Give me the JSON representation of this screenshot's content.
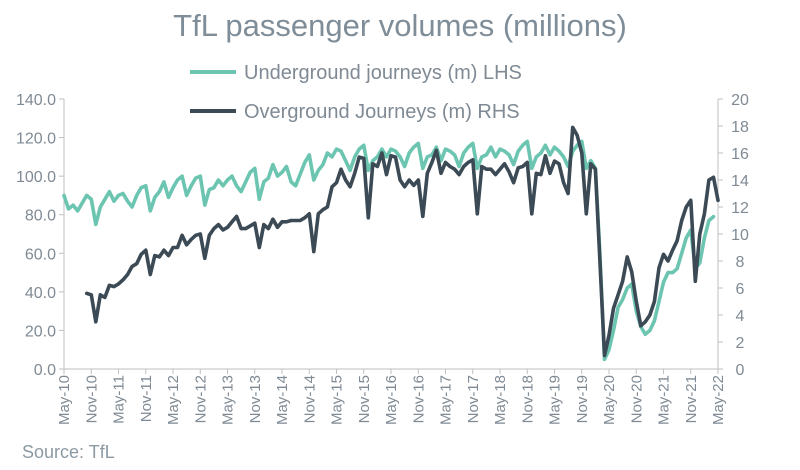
{
  "title": "TfL passenger volumes (millions)",
  "source": "Source: TfL",
  "chart_data": {
    "type": "line",
    "title": "TfL passenger volumes (millions)",
    "left_axis": {
      "min": 0,
      "max": 140,
      "step": 20,
      "ticks": [
        "0.0",
        "20.0",
        "40.0",
        "60.0",
        "80.0",
        "100.0",
        "120.0",
        "140.0"
      ]
    },
    "right_axis": {
      "min": 0,
      "max": 20,
      "step": 2,
      "ticks": [
        "0",
        "2",
        "4",
        "6",
        "8",
        "10",
        "12",
        "14",
        "16",
        "18",
        "20"
      ]
    },
    "x_tick_labels": [
      "May-10",
      "Nov-10",
      "May-11",
      "Nov-11",
      "May-12",
      "Nov-12",
      "May-13",
      "Nov-13",
      "May-14",
      "Nov-14",
      "May-15",
      "Nov-15",
      "May-16",
      "Nov-16",
      "May-17",
      "Nov-17",
      "May-18",
      "Nov-18",
      "May-19",
      "Nov-19",
      "May-20",
      "Nov-20",
      "May-21",
      "Nov-21",
      "May-22"
    ],
    "grid": false,
    "legend_position": "top-center",
    "series": [
      {
        "name": "Underground journeys (m) LHS",
        "axis": "left",
        "color": "#6cc5b0",
        "points": [
          [
            "May-10",
            90
          ],
          [
            "Jun-10",
            83
          ],
          [
            "Jul-10",
            85
          ],
          [
            "Aug-10",
            82
          ],
          [
            "Sep-10",
            86
          ],
          [
            "Oct-10",
            90
          ],
          [
            "Nov-10",
            88
          ],
          [
            "Dec-10",
            75
          ],
          [
            "Jan-11",
            84
          ],
          [
            "Feb-11",
            88
          ],
          [
            "Mar-11",
            92
          ],
          [
            "Apr-11",
            87
          ],
          [
            "May-11",
            90
          ],
          [
            "Jun-11",
            91
          ],
          [
            "Jul-11",
            87
          ],
          [
            "Aug-11",
            84
          ],
          [
            "Sep-11",
            90
          ],
          [
            "Oct-11",
            94
          ],
          [
            "Nov-11",
            95
          ],
          [
            "Dec-11",
            82
          ],
          [
            "Jan-12",
            89
          ],
          [
            "Feb-12",
            92
          ],
          [
            "Mar-12",
            97
          ],
          [
            "Apr-12",
            89
          ],
          [
            "May-12",
            94
          ],
          [
            "Jun-12",
            98
          ],
          [
            "Jul-12",
            100
          ],
          [
            "Aug-12",
            90
          ],
          [
            "Sep-12",
            95
          ],
          [
            "Oct-12",
            99
          ],
          [
            "Nov-12",
            100
          ],
          [
            "Dec-12",
            85
          ],
          [
            "Jan-13",
            93
          ],
          [
            "Feb-13",
            94
          ],
          [
            "Mar-13",
            98
          ],
          [
            "Apr-13",
            95
          ],
          [
            "May-13",
            98
          ],
          [
            "Jun-13",
            100
          ],
          [
            "Jul-13",
            95
          ],
          [
            "Aug-13",
            92
          ],
          [
            "Sep-13",
            97
          ],
          [
            "Oct-13",
            102
          ],
          [
            "Nov-13",
            104
          ],
          [
            "Dec-13",
            88
          ],
          [
            "Jan-14",
            97
          ],
          [
            "Feb-14",
            99
          ],
          [
            "Mar-14",
            106
          ],
          [
            "Apr-14",
            100
          ],
          [
            "May-14",
            102
          ],
          [
            "Jun-14",
            105
          ],
          [
            "Jul-14",
            97
          ],
          [
            "Aug-14",
            95
          ],
          [
            "Sep-14",
            101
          ],
          [
            "Oct-14",
            107
          ],
          [
            "Nov-14",
            111
          ],
          [
            "Dec-14",
            98
          ],
          [
            "Jan-15",
            103
          ],
          [
            "Feb-15",
            106
          ],
          [
            "Mar-15",
            112
          ],
          [
            "Apr-15",
            110
          ],
          [
            "May-15",
            114
          ],
          [
            "Jun-15",
            113
          ],
          [
            "Jul-15",
            108
          ],
          [
            "Aug-15",
            103
          ],
          [
            "Sep-15",
            110
          ],
          [
            "Oct-15",
            114
          ],
          [
            "Nov-15",
            116
          ],
          [
            "Dec-15",
            103
          ],
          [
            "Jan-16",
            108
          ],
          [
            "Feb-16",
            110
          ],
          [
            "Mar-16",
            114
          ],
          [
            "Apr-16",
            110
          ],
          [
            "May-16",
            114
          ],
          [
            "Jun-16",
            113
          ],
          [
            "Jul-16",
            110
          ],
          [
            "Aug-16",
            105
          ],
          [
            "Sep-16",
            112
          ],
          [
            "Oct-16",
            115
          ],
          [
            "Nov-16",
            117
          ],
          [
            "Dec-16",
            104
          ],
          [
            "Jan-17",
            110
          ],
          [
            "Feb-17",
            111
          ],
          [
            "Mar-17",
            115
          ],
          [
            "Apr-17",
            108
          ],
          [
            "May-17",
            114
          ],
          [
            "Jun-17",
            113
          ],
          [
            "Jul-17",
            111
          ],
          [
            "Aug-17",
            105
          ],
          [
            "Sep-17",
            112
          ],
          [
            "Oct-17",
            115
          ],
          [
            "Nov-17",
            117
          ],
          [
            "Dec-17",
            104
          ],
          [
            "Jan-18",
            110
          ],
          [
            "Feb-18",
            111
          ],
          [
            "Mar-18",
            115
          ],
          [
            "Apr-18",
            110
          ],
          [
            "May-18",
            114
          ],
          [
            "Jun-18",
            113
          ],
          [
            "Jul-18",
            111
          ],
          [
            "Aug-18",
            106
          ],
          [
            "Sep-18",
            113
          ],
          [
            "Oct-18",
            116
          ],
          [
            "Nov-18",
            118
          ],
          [
            "Dec-18",
            104
          ],
          [
            "Jan-19",
            110
          ],
          [
            "Feb-19",
            112
          ],
          [
            "Mar-19",
            116
          ],
          [
            "Apr-19",
            111
          ],
          [
            "May-19",
            115
          ],
          [
            "Jun-19",
            113
          ],
          [
            "Jul-19",
            110
          ],
          [
            "Aug-19",
            105
          ],
          [
            "Sep-19",
            113
          ],
          [
            "Oct-19",
            116
          ],
          [
            "Nov-19",
            118
          ],
          [
            "Dec-19",
            104
          ],
          [
            "Jan-20",
            108
          ],
          [
            "Feb-20",
            104
          ],
          [
            "Mar-20",
            60
          ],
          [
            "Apr-20",
            5
          ],
          [
            "May-20",
            10
          ],
          [
            "Jun-20",
            20
          ],
          [
            "Jul-20",
            32
          ],
          [
            "Aug-20",
            36
          ],
          [
            "Sep-20",
            42
          ],
          [
            "Oct-20",
            44
          ],
          [
            "Nov-20",
            30
          ],
          [
            "Dec-20",
            22
          ],
          [
            "Jan-21",
            18
          ],
          [
            "Feb-21",
            20
          ],
          [
            "Mar-21",
            25
          ],
          [
            "Apr-21",
            35
          ],
          [
            "May-21",
            45
          ],
          [
            "Jun-21",
            50
          ],
          [
            "Jul-21",
            50
          ],
          [
            "Aug-21",
            52
          ],
          [
            "Sep-21",
            60
          ],
          [
            "Oct-21",
            68
          ],
          [
            "Nov-21",
            72
          ],
          [
            "Dec-21",
            52
          ],
          [
            "Jan-22",
            55
          ],
          [
            "Feb-22",
            68
          ],
          [
            "Mar-22",
            77
          ],
          [
            "Apr-22",
            79
          ]
        ]
      },
      {
        "name": "Overground Journeys (m) RHS",
        "axis": "right",
        "color": "#3b4a55",
        "points": [
          [
            "Oct-10",
            5.6
          ],
          [
            "Nov-10",
            5.5
          ],
          [
            "Dec-10",
            3.5
          ],
          [
            "Jan-11",
            5.5
          ],
          [
            "Feb-11",
            5.3
          ],
          [
            "Mar-11",
            6.2
          ],
          [
            "Apr-11",
            6.1
          ],
          [
            "May-11",
            6.3
          ],
          [
            "Jun-11",
            6.6
          ],
          [
            "Jul-11",
            7.0
          ],
          [
            "Aug-11",
            7.6
          ],
          [
            "Sep-11",
            7.8
          ],
          [
            "Oct-11",
            8.5
          ],
          [
            "Nov-11",
            8.8
          ],
          [
            "Dec-11",
            7.0
          ],
          [
            "Jan-12",
            8.4
          ],
          [
            "Feb-12",
            8.3
          ],
          [
            "Mar-12",
            8.8
          ],
          [
            "Apr-12",
            8.4
          ],
          [
            "May-12",
            9.0
          ],
          [
            "Jun-12",
            9.0
          ],
          [
            "Jul-12",
            9.9
          ],
          [
            "Aug-12",
            9.2
          ],
          [
            "Sep-12",
            9.6
          ],
          [
            "Oct-12",
            9.9
          ],
          [
            "Nov-12",
            10.0
          ],
          [
            "Dec-12",
            8.2
          ],
          [
            "Jan-13",
            9.9
          ],
          [
            "Feb-13",
            10.4
          ],
          [
            "Mar-13",
            10.7
          ],
          [
            "Apr-13",
            10.3
          ],
          [
            "May-13",
            10.5
          ],
          [
            "Jun-13",
            10.9
          ],
          [
            "Jul-13",
            11.3
          ],
          [
            "Aug-13",
            10.4
          ],
          [
            "Sep-13",
            10.4
          ],
          [
            "Oct-13",
            10.6
          ],
          [
            "Nov-13",
            10.8
          ],
          [
            "Dec-13",
            9.0
          ],
          [
            "Jan-14",
            10.7
          ],
          [
            "Feb-14",
            10.4
          ],
          [
            "Mar-14",
            11.1
          ],
          [
            "Apr-14",
            10.5
          ],
          [
            "May-14",
            10.9
          ],
          [
            "Jun-14",
            10.9
          ],
          [
            "Jul-14",
            11.0
          ],
          [
            "Aug-14",
            11.0
          ],
          [
            "Sep-14",
            11.0
          ],
          [
            "Oct-14",
            11.2
          ],
          [
            "Nov-14",
            11.5
          ],
          [
            "Dec-14",
            8.7
          ],
          [
            "Jan-15",
            11.5
          ],
          [
            "Feb-15",
            11.8
          ],
          [
            "Mar-15",
            12.0
          ],
          [
            "Apr-15",
            13.5
          ],
          [
            "May-15",
            13.8
          ],
          [
            "Jun-15",
            14.8
          ],
          [
            "Jul-15",
            14.0
          ],
          [
            "Aug-15",
            13.5
          ],
          [
            "Sep-15",
            14.5
          ],
          [
            "Oct-15",
            15.7
          ],
          [
            "Nov-15",
            15.6
          ],
          [
            "Dec-15",
            11.2
          ],
          [
            "Jan-16",
            15.2
          ],
          [
            "Feb-16",
            15.0
          ],
          [
            "Mar-16",
            16.0
          ],
          [
            "Apr-16",
            14.4
          ],
          [
            "May-16",
            15.8
          ],
          [
            "Jun-16",
            15.7
          ],
          [
            "Jul-16",
            14.0
          ],
          [
            "Aug-16",
            13.5
          ],
          [
            "Sep-16",
            14.0
          ],
          [
            "Oct-16",
            13.6
          ],
          [
            "Nov-16",
            14.0
          ],
          [
            "Dec-16",
            11.3
          ],
          [
            "Jan-17",
            14.5
          ],
          [
            "Feb-17",
            15.3
          ],
          [
            "Mar-17",
            16.2
          ],
          [
            "Apr-17",
            14.5
          ],
          [
            "May-17",
            15.3
          ],
          [
            "Jun-17",
            15.0
          ],
          [
            "Jul-17",
            14.8
          ],
          [
            "Aug-17",
            14.4
          ],
          [
            "Sep-17",
            15.0
          ],
          [
            "Oct-17",
            15.3
          ],
          [
            "Nov-17",
            15.5
          ],
          [
            "Dec-17",
            11.5
          ],
          [
            "Jan-18",
            15.0
          ],
          [
            "Feb-18",
            14.8
          ],
          [
            "Mar-18",
            14.8
          ],
          [
            "Apr-18",
            14.4
          ],
          [
            "May-18",
            14.8
          ],
          [
            "Jun-18",
            15.2
          ],
          [
            "Jul-18",
            14.6
          ],
          [
            "Aug-18",
            13.8
          ],
          [
            "Sep-18",
            14.9
          ],
          [
            "Oct-18",
            15.0
          ],
          [
            "Nov-18",
            15.3
          ],
          [
            "Dec-18",
            11.5
          ],
          [
            "Jan-19",
            14.5
          ],
          [
            "Feb-19",
            14.4
          ],
          [
            "Mar-19",
            15.8
          ],
          [
            "Apr-19",
            14.5
          ],
          [
            "May-19",
            15.4
          ],
          [
            "Jun-19",
            15.2
          ],
          [
            "Jul-19",
            13.8
          ],
          [
            "Aug-19",
            13.0
          ],
          [
            "Sep-19",
            17.9
          ],
          [
            "Oct-19",
            17.3
          ],
          [
            "Nov-19",
            16.0
          ],
          [
            "Dec-19",
            11.5
          ],
          [
            "Jan-20",
            15.2
          ],
          [
            "Feb-20",
            14.8
          ],
          [
            "Mar-20",
            8.0
          ],
          [
            "Apr-20",
            1.0
          ],
          [
            "May-20",
            2.5
          ],
          [
            "Jun-20",
            4.5
          ],
          [
            "Jul-20",
            5.5
          ],
          [
            "Aug-20",
            6.5
          ],
          [
            "Sep-20",
            8.3
          ],
          [
            "Oct-20",
            7.2
          ],
          [
            "Nov-20",
            5.0
          ],
          [
            "Dec-20",
            3.2
          ],
          [
            "Jan-21",
            3.5
          ],
          [
            "Feb-21",
            4.0
          ],
          [
            "Mar-21",
            5.0
          ],
          [
            "Apr-21",
            7.5
          ],
          [
            "May-21",
            8.5
          ],
          [
            "Jun-21",
            8.0
          ],
          [
            "Jul-21",
            8.8
          ],
          [
            "Aug-21",
            9.5
          ],
          [
            "Sep-21",
            11.0
          ],
          [
            "Oct-21",
            12.0
          ],
          [
            "Nov-21",
            12.5
          ],
          [
            "Dec-21",
            6.5
          ],
          [
            "Jan-22",
            10.0
          ],
          [
            "Feb-22",
            11.5
          ],
          [
            "Mar-22",
            14.0
          ],
          [
            "Apr-22",
            14.2
          ],
          [
            "May-22",
            12.5
          ]
        ]
      }
    ]
  }
}
